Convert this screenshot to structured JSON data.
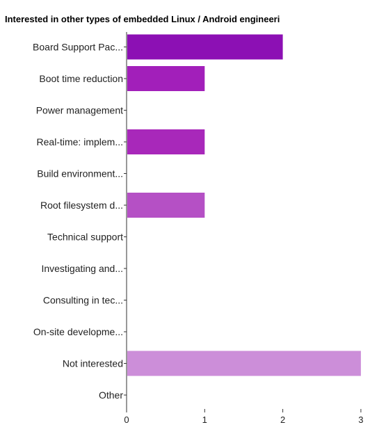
{
  "chart_data": {
    "type": "bar",
    "orientation": "horizontal",
    "title": "Interested in other types of embedded Linux / Android engineeri",
    "categories": [
      "Board Support Pac...",
      "Boot time reduction",
      "Power management",
      "Real-time: implem...",
      "Build environment...",
      "Root filesystem d...",
      "Technical support",
      "Investigating and...",
      "Consulting in tec...",
      "On-site developme...",
      "Not interested",
      "Other"
    ],
    "values": [
      2,
      1,
      0,
      1,
      0,
      1,
      0,
      0,
      0,
      0,
      3,
      0
    ],
    "bar_colors": [
      "#8c10b4",
      "#a21fba",
      "#a21fba",
      "#a828ba",
      "#a828ba",
      "#b550c5",
      "#b550c5",
      "#b550c5",
      "#b550c5",
      "#b550c5",
      "#cc8ed9",
      "#cc8ed9"
    ],
    "xlim": [
      0,
      3
    ],
    "xticks": [
      "0",
      "1",
      "2",
      "3"
    ],
    "xlabel": "",
    "ylabel": "",
    "grid": false,
    "legend": "none"
  }
}
